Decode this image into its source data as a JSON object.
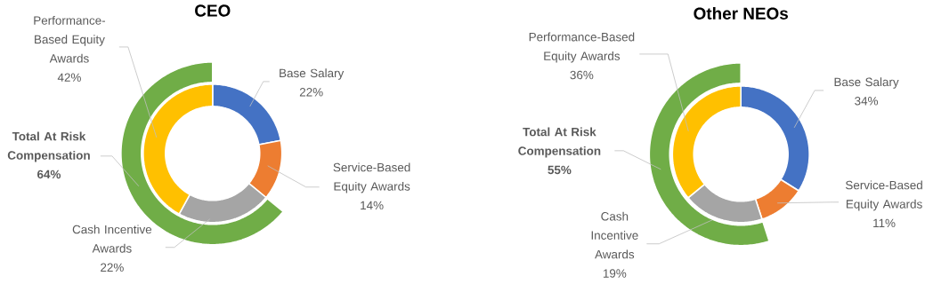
{
  "chart_data": [
    {
      "type": "donut",
      "title": "CEO",
      "categories": [
        "Base Salary",
        "Service-Based Equity Awards",
        "Cash Incentive Awards",
        "Performance-Based Equity Awards"
      ],
      "values": [
        22,
        14,
        22,
        42
      ],
      "colors": [
        "#4472c4",
        "#ed7d31",
        "#a5a5a5",
        "#ffc000"
      ],
      "value_labels": [
        "22%",
        "14%",
        "22%",
        "42%"
      ],
      "series": [
        {
          "name": "Total At Risk Compensation",
          "colors": [
            null,
            null,
            "#70ad47",
            null
          ],
          "values": [
            null,
            null,
            64,
            null
          ],
          "value_labels": [
            null,
            null,
            "64%",
            null
          ]
        }
      ]
    },
    {
      "type": "donut",
      "title": "Other NEOs",
      "categories": [
        "Base Salary",
        "Service-Based Equity Awards",
        "Cash Incentive Awards",
        "Performance-Based Equity Awards"
      ],
      "values": [
        34,
        11,
        19,
        36
      ],
      "colors": [
        "#4472c4",
        "#ed7d31",
        "#a5a5a5",
        "#ffc000"
      ],
      "value_labels": [
        "34%",
        "11%",
        "19%",
        "36%"
      ],
      "series": [
        {
          "name": "Total At Risk Compensation",
          "colors": [
            null,
            null,
            "#70ad47",
            null
          ],
          "values": [
            null,
            null,
            55,
            null
          ],
          "value_labels": [
            null,
            null,
            "55%",
            null
          ]
        }
      ]
    }
  ]
}
